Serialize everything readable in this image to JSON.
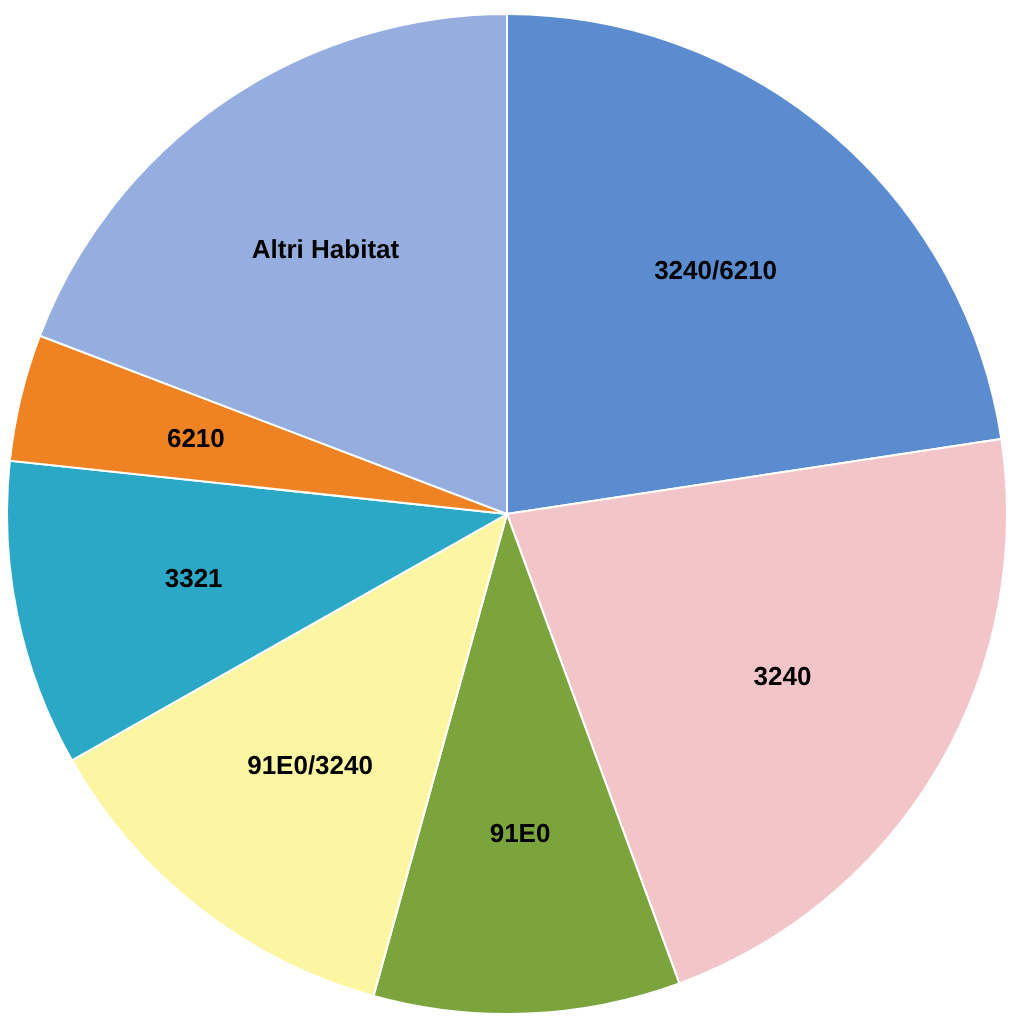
{
  "chart_data": {
    "type": "pie",
    "categories": [
      "3240/6210",
      "3240",
      "91E0",
      "91E0/3240",
      "3321",
      "6210",
      "Altri Habitat"
    ],
    "values": [
      22.6,
      21.8,
      9.9,
      12.5,
      9.9,
      4.1,
      19.2
    ],
    "colors": [
      "#5b8ccf",
      "#f2c5c9",
      "#7ba43c",
      "#fcf6a2",
      "#2ba8c6",
      "#ef8222",
      "#95aedf"
    ]
  }
}
